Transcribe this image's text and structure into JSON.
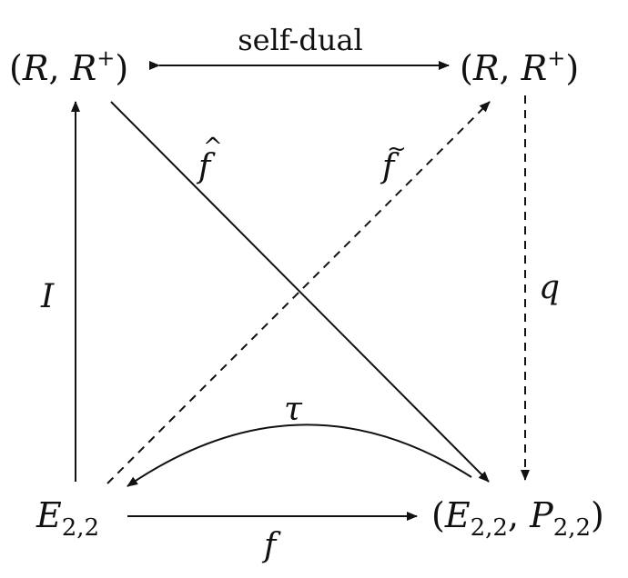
{
  "nodes": {
    "top_left": {
      "open": "(",
      "a": "R",
      "comma": ", ",
      "b": "R",
      "b_sup": "+",
      "close": ")"
    },
    "top_right": {
      "open": "(",
      "a": "R",
      "comma": ", ",
      "b": "R",
      "b_sup": "+",
      "close": ")"
    },
    "bottom_left": {
      "base": "E",
      "sub": "2,2"
    },
    "bottom_right": {
      "open": "(",
      "a": "E",
      "a_sub": "2,2",
      "comma": ", ",
      "b": "P",
      "b_sub": "2,2",
      "close": ")"
    }
  },
  "edges": {
    "self_dual": {
      "label": "self-dual",
      "style": "solid"
    },
    "I": {
      "label": "I",
      "style": "solid"
    },
    "q": {
      "label": "q",
      "style": "dashed"
    },
    "f_hat": {
      "label": "f",
      "accent": "^",
      "style": "solid"
    },
    "f_tilde": {
      "label": "f",
      "accent": "~",
      "style": "dashed"
    },
    "tau": {
      "label": "τ",
      "style": "solid"
    },
    "f": {
      "label": "f",
      "style": "solid"
    }
  }
}
